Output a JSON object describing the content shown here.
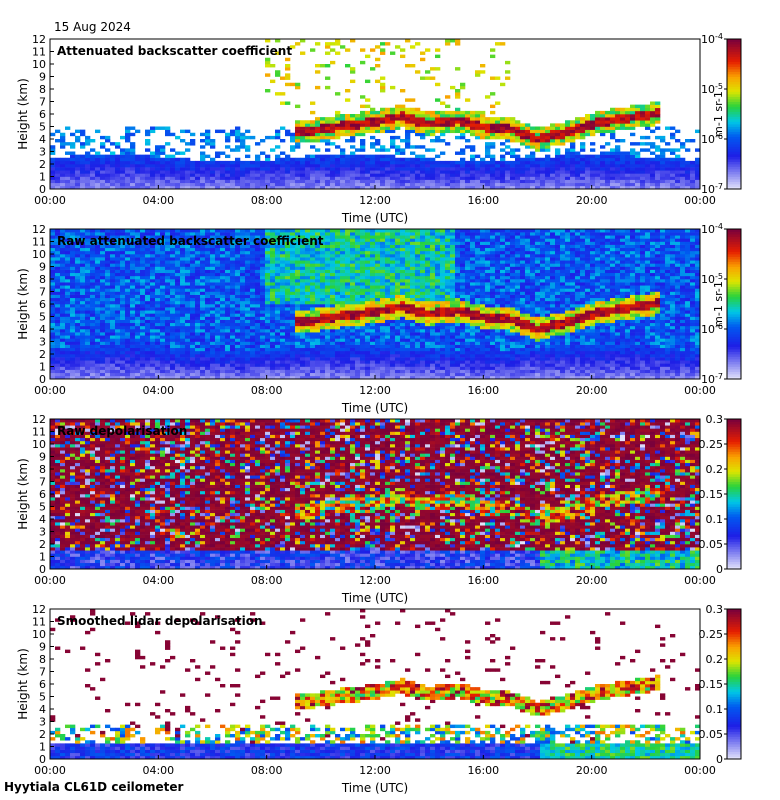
{
  "header": {
    "date": "15 Aug 2024"
  },
  "footer": {
    "site": "Hyytiala CL61D ceilometer"
  },
  "chart_data": [
    {
      "type": "heatmap",
      "title": "Attenuated backscatter coefficient",
      "xlabel": "Time (UTC)",
      "ylabel": "Height (km)",
      "xticks": [
        "00:00",
        "04:00",
        "08:00",
        "12:00",
        "16:00",
        "20:00",
        "00:00"
      ],
      "yticks": [
        "0",
        "1",
        "2",
        "3",
        "4",
        "5",
        "6",
        "7",
        "8",
        "9",
        "10",
        "11",
        "12"
      ],
      "ylim": [
        0,
        12
      ],
      "colorbar": {
        "scale": "log",
        "ticks": [
          "10-7",
          "10-6",
          "10-5",
          "10-4"
        ],
        "unit": "m-1 sr-1",
        "range": [
          1e-07,
          0.0001
        ]
      },
      "cloud_layer_km": [
        {
          "t": 9.0,
          "h": 4.5
        },
        {
          "t": 10.0,
          "h": 4.8
        },
        {
          "t": 11.0,
          "h": 5.1
        },
        {
          "t": 12.0,
          "h": 5.4
        },
        {
          "t": 13.0,
          "h": 5.8
        },
        {
          "t": 14.0,
          "h": 5.2
        },
        {
          "t": 15.0,
          "h": 5.5
        },
        {
          "t": 16.0,
          "h": 5.0
        },
        {
          "t": 17.0,
          "h": 4.8
        },
        {
          "t": 18.0,
          "h": 4.0
        },
        {
          "t": 19.0,
          "h": 4.5
        },
        {
          "t": 20.0,
          "h": 5.2
        },
        {
          "t": 21.0,
          "h": 5.6
        },
        {
          "t": 22.5,
          "h": 6.1
        }
      ],
      "boundary_layer_top_km": 2.5
    },
    {
      "type": "heatmap",
      "title": "Raw attenuated backscatter coefficient",
      "xlabel": "Time (UTC)",
      "ylabel": "Height (km)",
      "xticks": [
        "00:00",
        "04:00",
        "08:00",
        "12:00",
        "16:00",
        "20:00",
        "00:00"
      ],
      "yticks": [
        "0",
        "1",
        "2",
        "3",
        "4",
        "5",
        "6",
        "7",
        "8",
        "9",
        "10",
        "11",
        "12"
      ],
      "ylim": [
        0,
        12
      ],
      "colorbar": {
        "scale": "log",
        "ticks": [
          "10-7",
          "10-6",
          "10-5",
          "10-4"
        ],
        "unit": "m-1 sr-1",
        "range": [
          1e-07,
          0.0001
        ]
      },
      "boundary_layer_top_km": 2.5
    },
    {
      "type": "heatmap",
      "title": "Raw depolarisation",
      "xlabel": "Time (UTC)",
      "ylabel": "Height (km)",
      "xticks": [
        "00:00",
        "04:00",
        "08:00",
        "12:00",
        "16:00",
        "20:00",
        "00:00"
      ],
      "yticks": [
        "0",
        "1",
        "2",
        "3",
        "4",
        "5",
        "6",
        "7",
        "8",
        "9",
        "10",
        "11",
        "12"
      ],
      "ylim": [
        0,
        12
      ],
      "colorbar": {
        "scale": "linear",
        "ticks": [
          "0",
          "0.05",
          "0.1",
          "0.15",
          "0.2",
          "0.25",
          "0.3"
        ],
        "range": [
          0,
          0.3
        ]
      }
    },
    {
      "type": "heatmap",
      "title": "Smoothed lidar depolarisation",
      "xlabel": "Time (UTC)",
      "ylabel": "Height (km)",
      "xticks": [
        "00:00",
        "04:00",
        "08:00",
        "12:00",
        "16:00",
        "20:00",
        "00:00"
      ],
      "yticks": [
        "0",
        "1",
        "2",
        "3",
        "4",
        "5",
        "6",
        "7",
        "8",
        "9",
        "10",
        "11",
        "12"
      ],
      "ylim": [
        0,
        12
      ],
      "colorbar": {
        "scale": "linear",
        "ticks": [
          "0",
          "0.05",
          "0.1",
          "0.15",
          "0.2",
          "0.25",
          "0.3"
        ],
        "range": [
          0,
          0.3
        ]
      }
    }
  ]
}
